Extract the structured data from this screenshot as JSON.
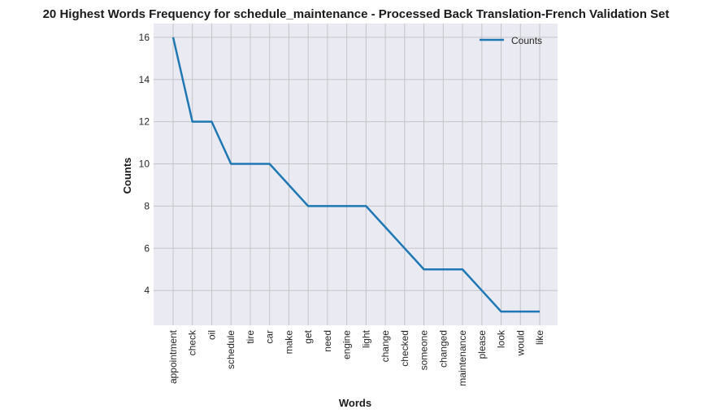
{
  "chart_data": {
    "type": "line",
    "title": "20 Highest Words Frequency for schedule_maintenance - Processed Back Translation-French Validation Set",
    "xlabel": "Words",
    "ylabel": "Counts",
    "categories": [
      "appointment",
      "check",
      "oil",
      "schedule",
      "tire",
      "car",
      "make",
      "get",
      "need",
      "engine",
      "light",
      "change",
      "checked",
      "someone",
      "changed",
      "maintenance",
      "please",
      "look",
      "would",
      "like"
    ],
    "series": [
      {
        "name": "Counts",
        "values": [
          16,
          12,
          12,
          10,
          10,
          10,
          9,
          8,
          8,
          8,
          8,
          7,
          6,
          5,
          5,
          5,
          4,
          3,
          3,
          3
        ]
      }
    ],
    "ylim": [
      2.35,
      16.65
    ],
    "yticks": [
      4,
      6,
      8,
      10,
      12,
      14,
      16
    ],
    "grid": true,
    "legend": "top-right",
    "colors": {
      "line": "#1f77b4",
      "plot_bg": "#eaeaf2",
      "grid": "#c4c4c8"
    }
  }
}
